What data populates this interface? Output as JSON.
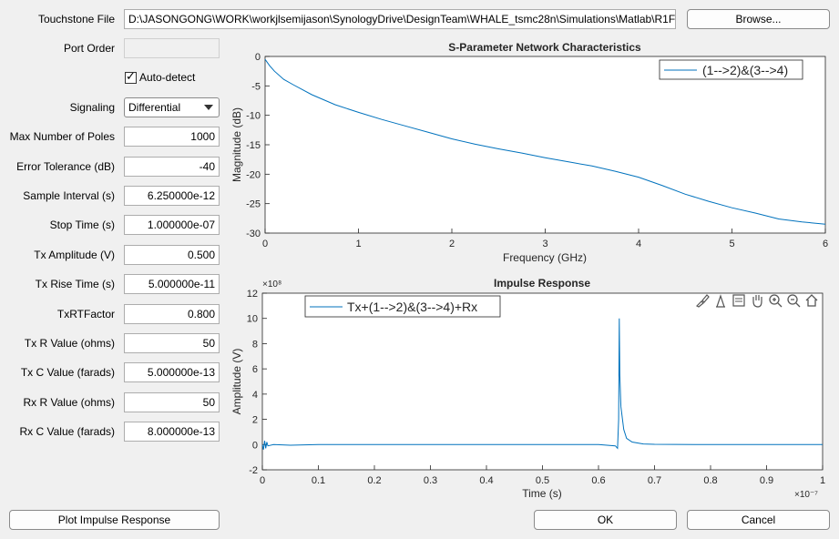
{
  "form": {
    "touchstone_label": "Touchstone File",
    "touchstone_value": "D:\\JASONGONG\\WORK\\workjlsemijason\\SynologyDrive\\DesignTeam\\WHALE_tsmc28n\\Simulations\\Matlab\\R1F",
    "browse_label": "Browse...",
    "port_order_label": "Port Order",
    "port_order_value": "",
    "auto_detect_label": "Auto-detect",
    "auto_detect_checked": "✓",
    "signaling_label": "Signaling",
    "signaling_value": "Differential",
    "fields": [
      {
        "label": "Max Number of Poles",
        "value": "1000"
      },
      {
        "label": "Error Tolerance (dB)",
        "value": "-40"
      },
      {
        "label": "Sample Interval (s)",
        "value": "6.250000e-12"
      },
      {
        "label": "Stop Time (s)",
        "value": "1.000000e-07"
      },
      {
        "label": "Tx Amplitude (V)",
        "value": "0.500"
      },
      {
        "label": "Tx Rise Time (s)",
        "value": "5.000000e-11"
      },
      {
        "label": "TxRTFactor",
        "value": "0.800"
      },
      {
        "label": "Tx R Value (ohms)",
        "value": "50"
      },
      {
        "label": "Tx C Value (farads)",
        "value": "5.000000e-13"
      },
      {
        "label": "Rx R Value (ohms)",
        "value": "50"
      },
      {
        "label": "Rx C Value (farads)",
        "value": "8.000000e-13"
      }
    ]
  },
  "buttons": {
    "plot_impulse": "Plot Impulse Response",
    "ok": "OK",
    "cancel": "Cancel"
  },
  "toolbar_icons": [
    "brush-icon",
    "data-tip-icon",
    "legend-icon",
    "pan-hand-icon",
    "zoom-in-icon",
    "zoom-out-icon",
    "home-icon"
  ],
  "colors": {
    "line": "#0072bd"
  },
  "chart_data": [
    {
      "type": "line",
      "title": "S-Parameter Network Characteristics",
      "xlabel": "Frequency (GHz)",
      "ylabel": "Magnitude (dB)",
      "xlim": [
        0,
        6
      ],
      "ylim": [
        -30,
        0
      ],
      "xticks": [
        "0",
        "1",
        "2",
        "3",
        "4",
        "5",
        "6"
      ],
      "yticks": [
        "0",
        "-5",
        "-10",
        "-15",
        "-20",
        "-25",
        "-30"
      ],
      "series": [
        {
          "name": "(1-->2)&(3-->4)",
          "x": [
            0,
            0.05,
            0.1,
            0.2,
            0.3,
            0.5,
            0.75,
            1,
            1.25,
            1.5,
            1.75,
            2,
            2.25,
            2.5,
            2.75,
            3,
            3.25,
            3.5,
            3.75,
            4,
            4.25,
            4.5,
            4.75,
            5,
            5.25,
            5.5,
            5.75,
            6
          ],
          "y": [
            -0.5,
            -1.6,
            -2.5,
            -3.9,
            -4.8,
            -6.5,
            -8.2,
            -9.5,
            -10.7,
            -11.8,
            -12.9,
            -14.0,
            -14.9,
            -15.7,
            -16.4,
            -17.2,
            -17.9,
            -18.6,
            -19.5,
            -20.5,
            -21.9,
            -23.4,
            -24.6,
            -25.7,
            -26.6,
            -27.6,
            -28.1,
            -28.5
          ]
        }
      ],
      "legend": "top-right",
      "grid": false
    },
    {
      "type": "line",
      "title": "Impulse Response",
      "xlabel": "Time (s)",
      "ylabel": "Amplitude (V)",
      "x_exponent": "×10⁻⁷",
      "y_exponent": "×10⁸",
      "xlim": [
        0,
        1e-07
      ],
      "ylim": [
        -200000000.0,
        1200000000.0
      ],
      "xticks": [
        "0",
        "0.1",
        "0.2",
        "0.3",
        "0.4",
        "0.5",
        "0.6",
        "0.7",
        "0.8",
        "0.9",
        "1"
      ],
      "yticks": [
        "12",
        "10",
        "8",
        "6",
        "4",
        "2",
        "0",
        "-2"
      ],
      "series": [
        {
          "name": "Tx+(1-->2)&(3-->4)+Rx",
          "x": [
            0,
            2e-10,
            4e-10,
            6e-10,
            8e-10,
            1e-09,
            2e-09,
            5e-09,
            1e-08,
            3e-08,
            6e-08,
            6.3e-08,
            6.34e-08,
            6.36e-08,
            6.37e-08,
            6.38e-08,
            6.4e-08,
            6.45e-08,
            6.5e-08,
            6.6e-08,
            6.8e-08,
            7e-08,
            8e-08,
            1e-07
          ],
          "y": [
            0,
            -40000000.0,
            30000000.0,
            -30000000.0,
            20000000.0,
            -10000000.0,
            0,
            -5000000.0,
            0,
            0,
            0,
            -10000000.0,
            -30000000.0,
            200000000.0,
            1000000000.0,
            550000000.0,
            300000000.0,
            120000000.0,
            50000000.0,
            20000000.0,
            5000000.0,
            2000000.0,
            0,
            0
          ]
        }
      ],
      "legend": "top-left",
      "grid": false
    }
  ]
}
